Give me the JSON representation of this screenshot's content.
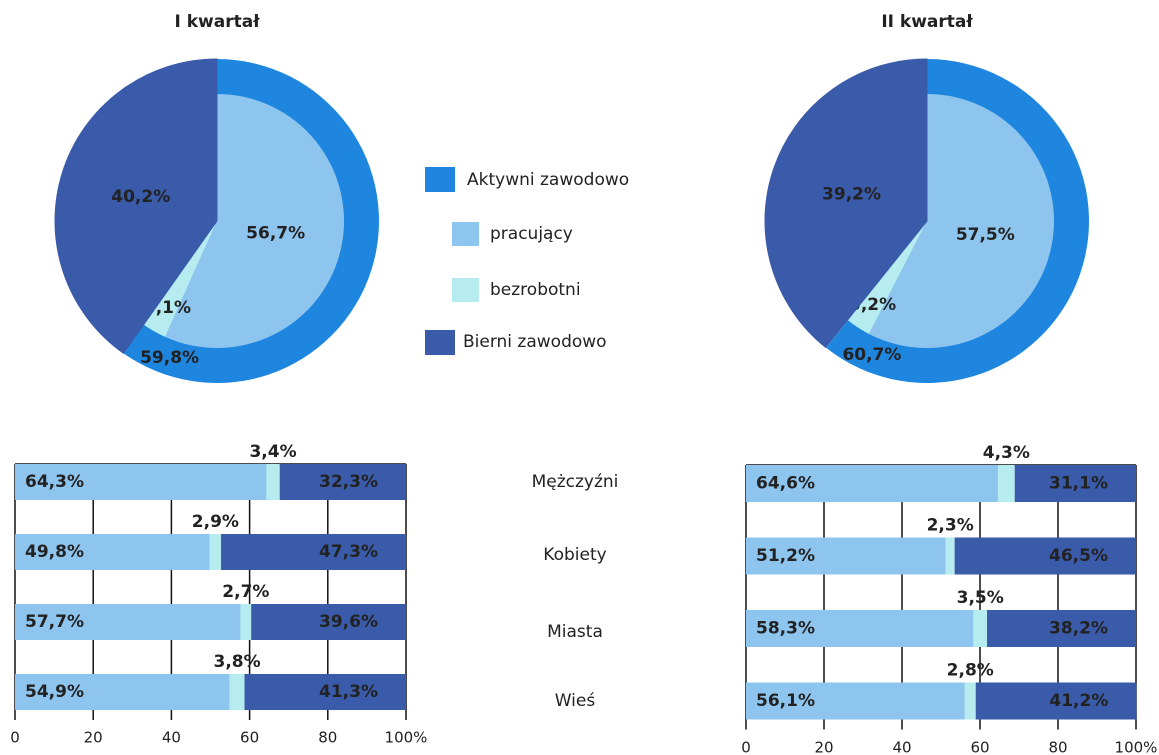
{
  "chart_data": [
    {
      "type": "pie",
      "title": "I kwartał",
      "categories": [
        "pracujący",
        "bezrobotni",
        "Bierni zawodowo"
      ],
      "values": [
        56.7,
        3.1,
        40.2
      ],
      "value_labels": [
        "56,7%",
        "3,1%",
        "40,2%"
      ],
      "colors": [
        "#8ec5ee",
        "#b6ecef",
        "#3a5ba9"
      ],
      "ring": {
        "name": "Aktywni zawodowo",
        "value": 59.8,
        "value_label": "59,8%",
        "color": "#1f86e0"
      }
    },
    {
      "type": "pie",
      "title": "II kwartał",
      "values": [
        57.5,
        3.2,
        39.2
      ],
      "value_labels": [
        "57,5%",
        "3,2%",
        "39,2%"
      ],
      "colors": [
        "#8ec5ee",
        "#b6ecef",
        "#3a5ba9"
      ],
      "ring": {
        "value": 60.7,
        "value_label": "60,7%",
        "color": "#1f86e0"
      }
    },
    {
      "type": "bar",
      "orientation": "horizontal",
      "stacked": true,
      "categories": [
        "Mężczyźni",
        "Kobiety",
        "Miasta",
        "Wieś"
      ],
      "series": [
        {
          "color": "#8ec5ee",
          "values": [
            64.3,
            49.8,
            57.7,
            54.9
          ],
          "value_labels": [
            "64,3%",
            "49,8%",
            "57,7%",
            "54,9%"
          ]
        },
        {
          "color": "#b6ecef",
          "values": [
            3.4,
            2.9,
            2.7,
            3.8
          ],
          "value_labels": [
            "3,4%",
            "2,9%",
            "2,7%",
            "3,8%"
          ]
        },
        {
          "color": "#3a5ba9",
          "values": [
            32.3,
            47.3,
            39.6,
            41.3
          ],
          "value_labels": [
            "32,3%",
            "47,3%",
            "39,6%",
            "41,3%"
          ]
        }
      ],
      "xlim": [
        0,
        100
      ],
      "xticks": [
        0,
        20,
        40,
        60,
        80,
        {
          "value": 100,
          "label": "100%"
        }
      ],
      "grid": true
    },
    {
      "type": "bar",
      "orientation": "horizontal",
      "stacked": true,
      "series": [
        {
          "color": "#8ec5ee",
          "values": [
            64.6,
            51.2,
            58.3,
            56.1
          ],
          "value_labels": [
            "64,6%",
            "51,2%",
            "58,3%",
            "56,1%"
          ]
        },
        {
          "color": "#b6ecef",
          "values": [
            4.3,
            2.3,
            3.5,
            2.8
          ],
          "value_labels": [
            "4,3%",
            "2,3%",
            "3,5%",
            "2,8%"
          ]
        },
        {
          "color": "#3a5ba9",
          "values": [
            31.1,
            46.5,
            38.2,
            41.2
          ],
          "value_labels": [
            "31,1%",
            "46,5%",
            "38,2%",
            "41,2%"
          ]
        }
      ],
      "xlim": [
        0,
        100
      ],
      "xticks": [
        0,
        20,
        40,
        60,
        80,
        {
          "value": 100,
          "label": "100%"
        }
      ],
      "grid": true
    }
  ]
}
